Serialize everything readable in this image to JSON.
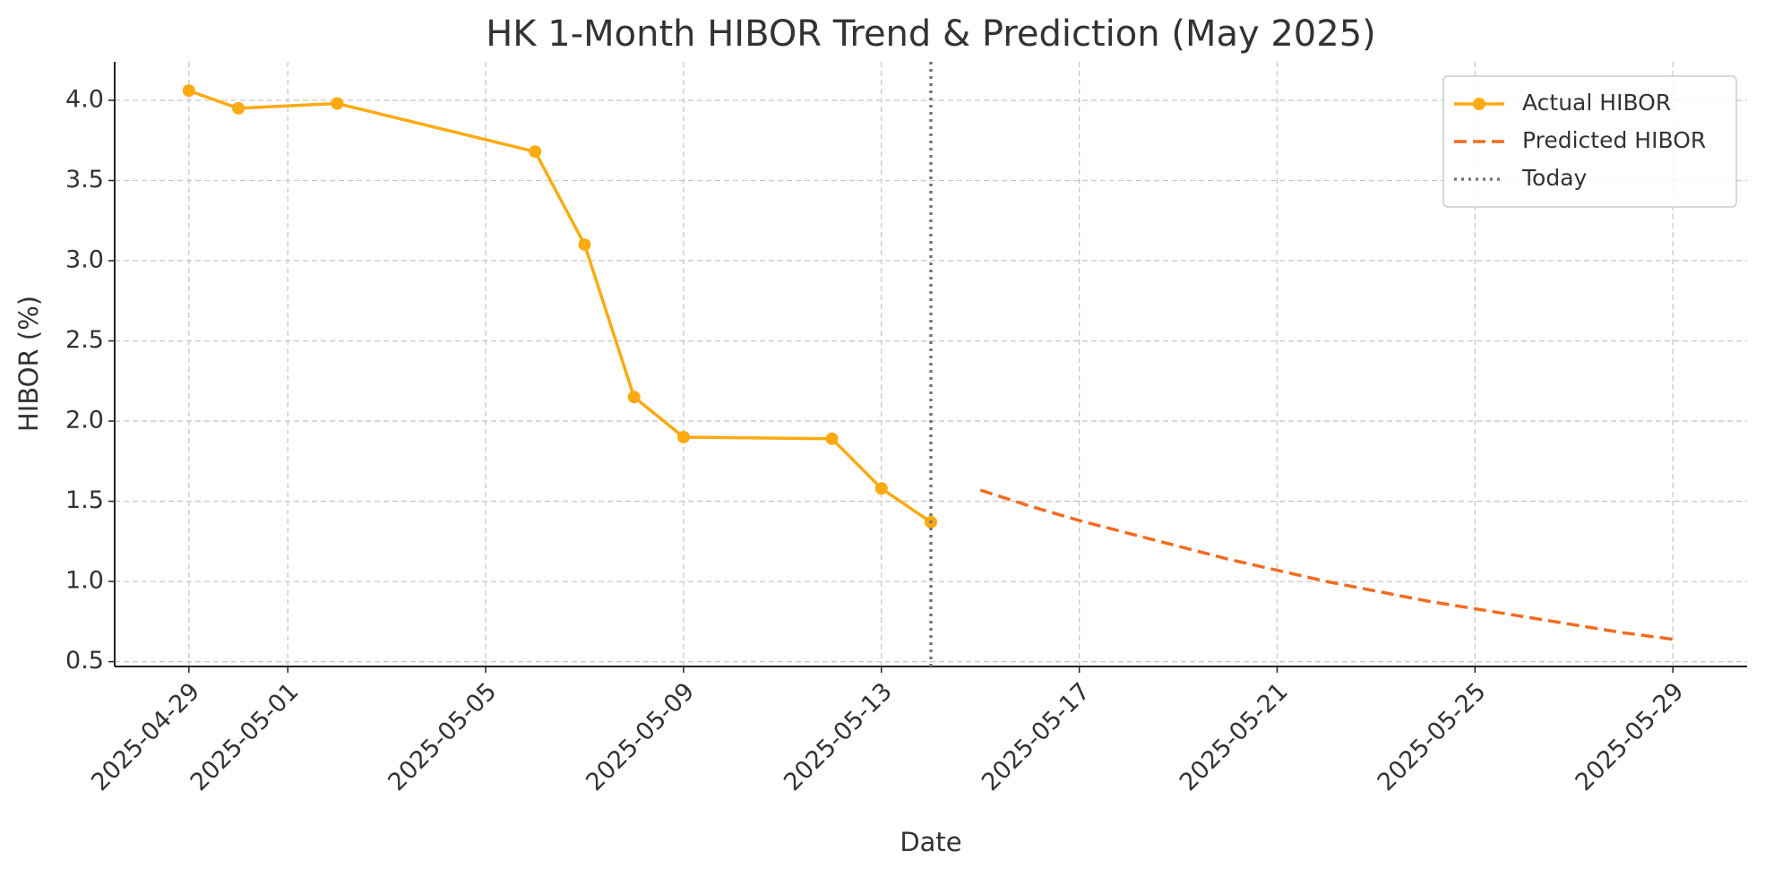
{
  "chart_data": {
    "type": "line",
    "title": "HK 1-Month HIBOR Trend & Prediction (May 2025)",
    "x_label": "Date",
    "y_label": "HIBOR (%)",
    "series": [
      {
        "name": "Actual HIBOR",
        "color": "#fbaa12",
        "style": "solid",
        "marker": true,
        "x": [
          "2025-04-29",
          "2025-04-30",
          "2025-05-02",
          "2025-05-06",
          "2025-05-07",
          "2025-05-08",
          "2025-05-09",
          "2025-05-12",
          "2025-05-13",
          "2025-05-14"
        ],
        "values": [
          4.06,
          3.95,
          3.98,
          3.68,
          3.1,
          2.15,
          1.9,
          1.89,
          1.58,
          1.37
        ]
      },
      {
        "name": "Predicted HIBOR",
        "color": "#f26b21",
        "style": "dashed",
        "marker": false,
        "x": [
          "2025-05-15",
          "2025-05-16",
          "2025-05-17",
          "2025-05-18",
          "2025-05-19",
          "2025-05-20",
          "2025-05-21",
          "2025-05-22",
          "2025-05-23",
          "2025-05-24",
          "2025-05-25",
          "2025-05-26",
          "2025-05-27",
          "2025-05-28",
          "2025-05-29"
        ],
        "values": [
          1.57,
          1.47,
          1.38,
          1.3,
          1.22,
          1.14,
          1.07,
          1.0,
          0.94,
          0.88,
          0.83,
          0.78,
          0.73,
          0.68,
          0.64
        ]
      }
    ],
    "vlines": [
      {
        "name": "Today",
        "x": "2025-05-14",
        "color": "#777777",
        "style": "dotted"
      }
    ],
    "xlim": [
      "2025-04-27T12:00Z",
      "2025-05-30T12:00Z"
    ],
    "xticks": [
      "2025-04-29",
      "2025-05-01",
      "2025-05-05",
      "2025-05-09",
      "2025-05-13",
      "2025-05-17",
      "2025-05-21",
      "2025-05-25",
      "2025-05-29"
    ],
    "ylim": [
      0.47,
      4.24
    ],
    "yticks": [
      0.5,
      {
        "value": 1.0,
        "label": "1.0"
      },
      1.5,
      {
        "value": 2.0,
        "label": "2.0"
      },
      2.5,
      {
        "value": 3.0,
        "label": "3.0"
      },
      3.5,
      {
        "value": 4.0,
        "label": "4.0"
      }
    ],
    "grid": true,
    "legend": "upper right"
  }
}
